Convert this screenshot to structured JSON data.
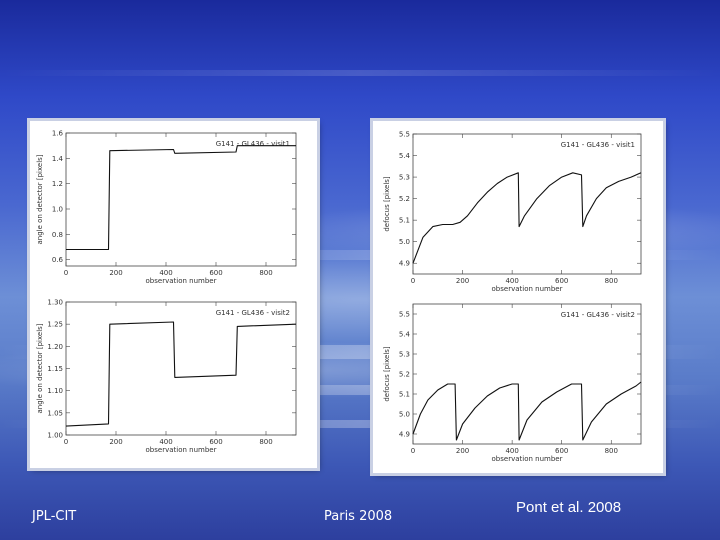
{
  "footer": {
    "left": "JPL-CIT",
    "center": "Paris 2008",
    "right": "Pont et al. 2008"
  },
  "chart_data": [
    {
      "type": "line",
      "title": "G141 - GL436 - visit1",
      "xlabel": "observation number",
      "ylabel": "angle on detector [pixels]",
      "xlim": [
        0,
        920
      ],
      "ylim": [
        0.55,
        1.6
      ],
      "xticks": [
        "0",
        "200",
        "400",
        "600",
        "800"
      ],
      "yticks": [
        "0.6",
        "0.8",
        "1.0",
        "1.2",
        "1.4",
        "1.6"
      ],
      "ytick_values": [
        0.6,
        0.8,
        1.0,
        1.2,
        1.4,
        1.6
      ],
      "xtick_values": [
        0,
        200,
        400,
        600,
        800
      ],
      "series": [
        {
          "x": [
            0,
            170,
            175,
            430,
            435,
            680,
            685,
            920
          ],
          "y": [
            0.68,
            0.68,
            1.46,
            1.47,
            1.44,
            1.45,
            1.5,
            1.5
          ]
        }
      ]
    },
    {
      "type": "line",
      "title": "G141 - GL436 - visit2",
      "xlabel": "observation number",
      "ylabel": "angle on detector [pixels]",
      "xlim": [
        0,
        920
      ],
      "ylim": [
        1.0,
        1.3
      ],
      "xticks": [
        "0",
        "200",
        "400",
        "600",
        "800"
      ],
      "yticks": [
        "1.00",
        "1.05",
        "1.10",
        "1.15",
        "1.20",
        "1.25",
        "1.30"
      ],
      "ytick_values": [
        1.0,
        1.05,
        1.1,
        1.15,
        1.2,
        1.25,
        1.3
      ],
      "xtick_values": [
        0,
        200,
        400,
        600,
        800
      ],
      "series": [
        {
          "x": [
            0,
            170,
            175,
            430,
            435,
            680,
            685,
            920
          ],
          "y": [
            1.02,
            1.025,
            1.25,
            1.255,
            1.13,
            1.135,
            1.245,
            1.25
          ]
        }
      ]
    },
    {
      "type": "line",
      "title": "G141 - GL436 - visit1",
      "xlabel": "observation number",
      "ylabel": "defocus [pixels]",
      "xlim": [
        0,
        920
      ],
      "ylim": [
        4.85,
        5.5
      ],
      "xticks": [
        "0",
        "200",
        "400",
        "600",
        "800"
      ],
      "yticks": [
        "4.9",
        "5.0",
        "5.1",
        "5.2",
        "5.3",
        "5.4",
        "5.5"
      ],
      "ytick_values": [
        4.9,
        5.0,
        5.1,
        5.2,
        5.3,
        5.4,
        5.5
      ],
      "xtick_values": [
        0,
        200,
        400,
        600,
        800
      ],
      "series": [
        {
          "x": [
            0,
            40,
            80,
            120,
            160,
            190,
            220,
            260,
            300,
            340,
            380,
            425,
            428,
            450,
            500,
            550,
            600,
            645,
            680,
            685,
            700,
            740,
            780,
            830,
            880,
            920
          ],
          "y": [
            4.9,
            5.02,
            5.07,
            5.08,
            5.08,
            5.09,
            5.12,
            5.18,
            5.23,
            5.27,
            5.3,
            5.32,
            5.07,
            5.12,
            5.2,
            5.26,
            5.3,
            5.32,
            5.31,
            5.07,
            5.12,
            5.2,
            5.25,
            5.28,
            5.3,
            5.32
          ]
        }
      ]
    },
    {
      "type": "line",
      "title": "G141 - GL436 - visit2",
      "xlabel": "observation number",
      "ylabel": "defocus [pixels]",
      "xlim": [
        0,
        920
      ],
      "ylim": [
        4.85,
        5.55
      ],
      "xticks": [
        "0",
        "200",
        "400",
        "600",
        "800"
      ],
      "yticks": [
        "4.9",
        "5.0",
        "5.1",
        "5.2",
        "5.3",
        "5.4",
        "5.5"
      ],
      "ytick_values": [
        4.9,
        5.0,
        5.1,
        5.2,
        5.3,
        5.4,
        5.5
      ],
      "xtick_values": [
        0,
        200,
        400,
        600,
        800
      ],
      "series": [
        {
          "x": [
            0,
            30,
            60,
            100,
            140,
            170,
            175,
            200,
            250,
            300,
            350,
            400,
            425,
            428,
            460,
            520,
            580,
            640,
            680,
            685,
            720,
            780,
            840,
            900,
            920
          ],
          "y": [
            4.9,
            5.0,
            5.07,
            5.12,
            5.15,
            5.15,
            4.87,
            4.95,
            5.03,
            5.09,
            5.13,
            5.15,
            5.15,
            4.87,
            4.97,
            5.06,
            5.11,
            5.15,
            5.15,
            4.87,
            4.96,
            5.05,
            5.1,
            5.14,
            5.16
          ]
        }
      ]
    }
  ]
}
